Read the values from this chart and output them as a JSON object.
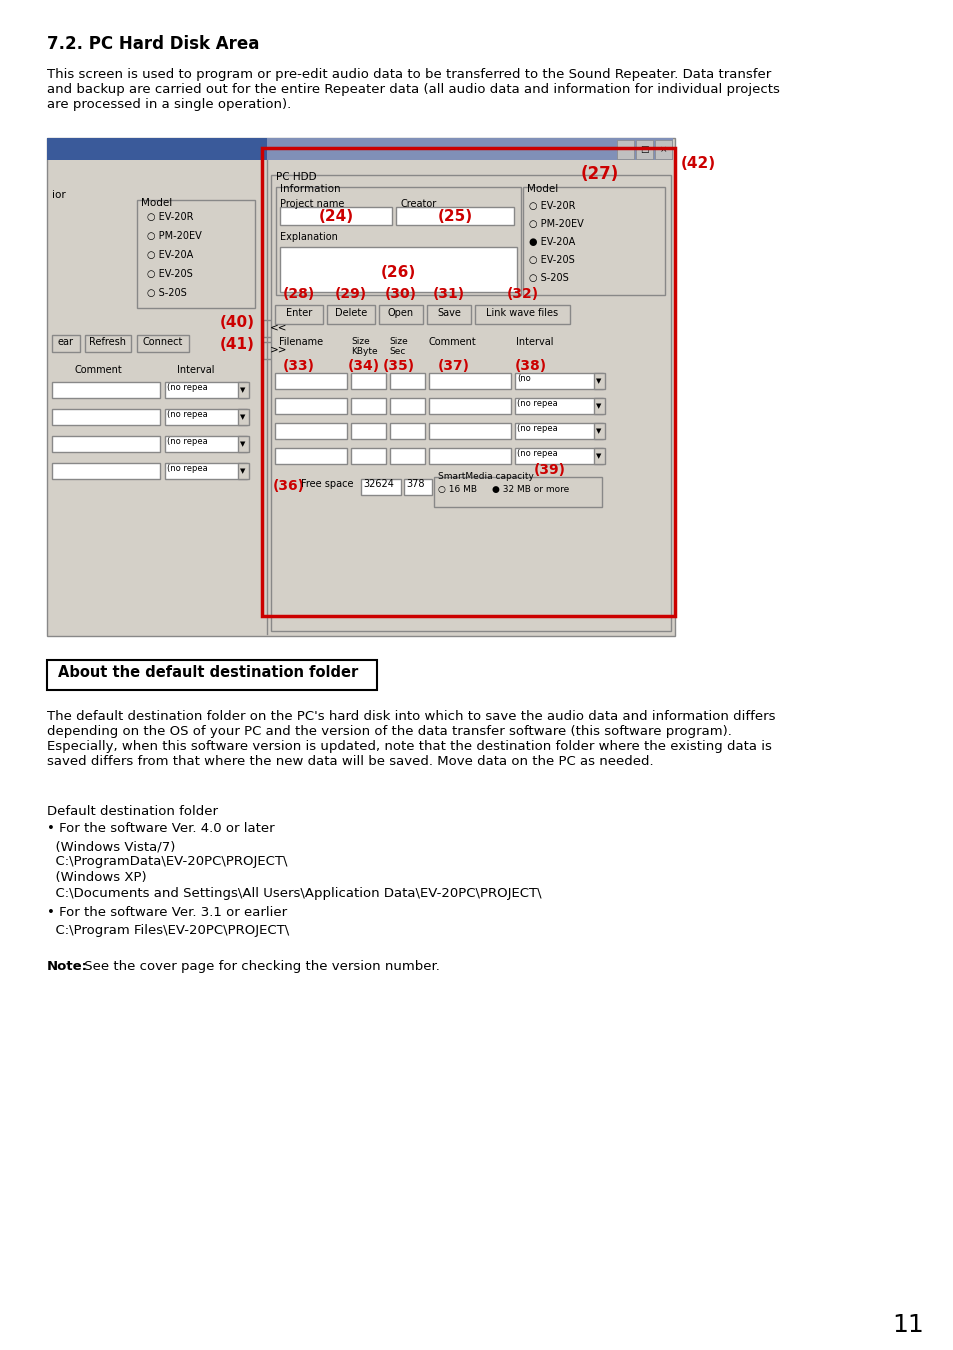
{
  "title": "7.2. PC Hard Disk Area",
  "bg_color": "#ffffff",
  "text_color": "#000000",
  "red_color": "#cc0000",
  "heading_font": 12,
  "body_font": 9.5,
  "intro_text": "This screen is used to program or pre-edit audio data to be transferred to the Sound Repeater. Data transfer\nand backup are carried out for the entire Repeater data (all audio data and information for individual projects\nare processed in a single operation).",
  "box_label": "About the default destination folder",
  "section2_text": "The default destination folder on the PC's hard disk into which to save the audio data and information differs\ndepending on the OS of your PC and the version of the data transfer software (this software program).\nEspecially, when this software version is updated, note that the destination folder where the existing data is\nsaved differs from that where the new data will be saved. Move data on the PC as needed.",
  "default_folder_label": "Default destination folder",
  "bullet1_title": "• For the software Ver. 4.0 or later",
  "bullet1_lines": [
    "  (Windows Vista/7)",
    "  C:\\ProgramData\\EV-20PC\\PROJECT\\",
    "  (Windows XP)",
    "  C:\\Documents and Settings\\All Users\\Application Data\\EV-20PC\\PROJECT\\"
  ],
  "bullet2_title": "• For the software Ver. 3.1 or earlier",
  "bullet2_lines": [
    "  C:\\Program Files\\EV-20PC\\PROJECT\\"
  ],
  "note_bold": "Note:",
  "note_rest": " See the cover page for checking the version number.",
  "page_number": "11",
  "red_border_color": "#cc0000"
}
